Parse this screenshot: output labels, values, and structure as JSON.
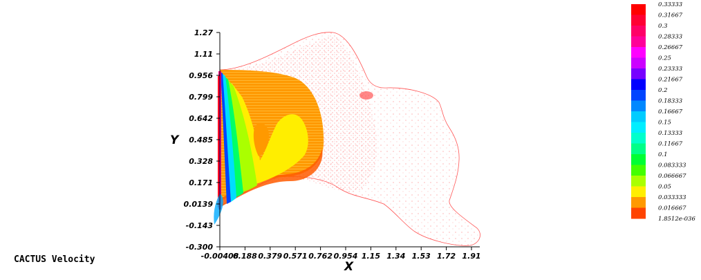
{
  "caption": "CACTUS Velocity",
  "chart_data": {
    "type": "contour",
    "xlabel": "X",
    "ylabel": "Y",
    "x_ticks": [
      "-0.00408",
      "0.188",
      "0.379",
      "0.571",
      "0.762",
      "0.954",
      "1.15",
      "1.34",
      "1.53",
      "1.72",
      "1.91"
    ],
    "y_ticks": [
      "1.27",
      "1.11",
      "0.956",
      "0.799",
      "0.642",
      "0.485",
      "0.328",
      "0.171",
      "0.0139",
      "-0.143",
      "-0.300"
    ],
    "xlim": [
      -0.00408,
      1.91
    ],
    "ylim": [
      -0.3,
      1.27
    ],
    "colorbar": {
      "levels": [
        {
          "label": "0.33333",
          "color": "#ff0000"
        },
        {
          "label": "0.31667",
          "color": "#ff0033"
        },
        {
          "label": "0.3",
          "color": "#ff0066"
        },
        {
          "label": "0.28333",
          "color": "#ff0099"
        },
        {
          "label": "0.26667",
          "color": "#ff00ff"
        },
        {
          "label": "0.25",
          "color": "#cc00ff"
        },
        {
          "label": "0.23333",
          "color": "#7700ff"
        },
        {
          "label": "0.21667",
          "color": "#0000ff"
        },
        {
          "label": "0.2",
          "color": "#0044ff"
        },
        {
          "label": "0.18333",
          "color": "#0088ff"
        },
        {
          "label": "0.16667",
          "color": "#00ccff"
        },
        {
          "label": "0.15",
          "color": "#00eeff"
        },
        {
          "label": "0.13333",
          "color": "#00ffcc"
        },
        {
          "label": "0.11667",
          "color": "#00ff88"
        },
        {
          "label": "0.1",
          "color": "#00ff33"
        },
        {
          "label": "0.083333",
          "color": "#44ff00"
        },
        {
          "label": "0.066667",
          "color": "#aaff00"
        },
        {
          "label": "0.05",
          "color": "#ffee00"
        },
        {
          "label": "0.033333",
          "color": "#ff9900"
        },
        {
          "label": "0.016667",
          "color": "#ff4400"
        },
        {
          "label": "1.8512e-036",
          "color": "#ff0000"
        }
      ]
    }
  }
}
